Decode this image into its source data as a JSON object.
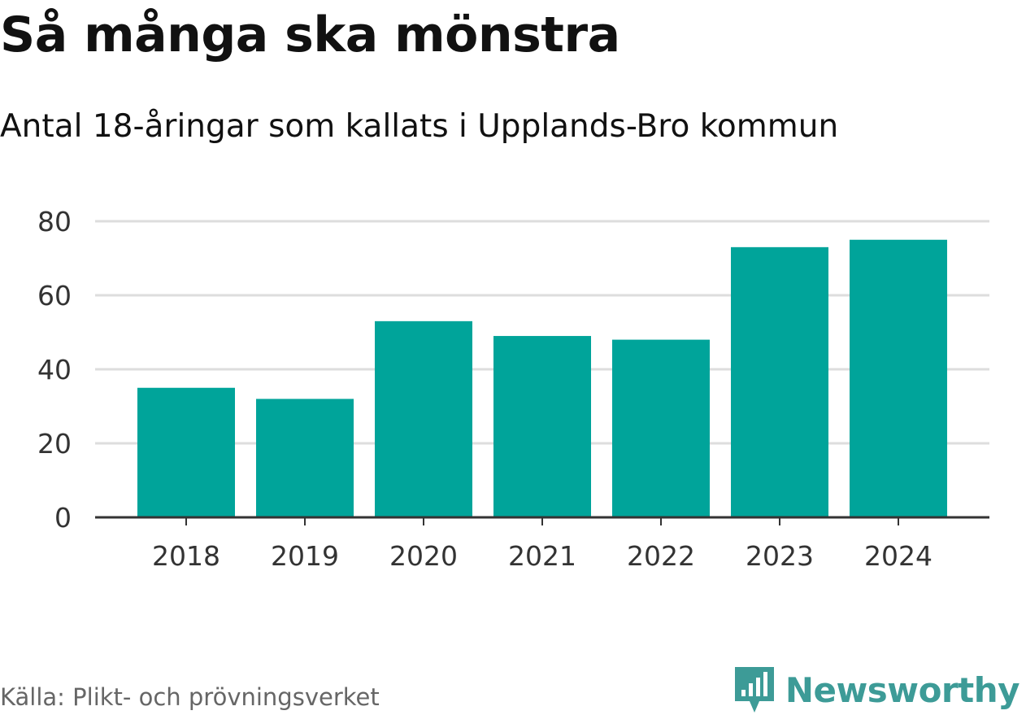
{
  "header": {
    "title": "Så många ska mönstra",
    "subtitle": "Antal 18-åringar som kallats i Upplands-Bro kommun"
  },
  "footer": {
    "source": "Källa: Plikt- och prövningsverket",
    "brand_name": "Newsworthy",
    "brand_icon": "newsworthy-logo-icon"
  },
  "colors": {
    "bar": "#00a49a",
    "grid": "#dddddd",
    "axis": "#333333",
    "brand": "#3d9b97"
  },
  "chart_data": {
    "type": "bar",
    "title": "Så många ska mönstra",
    "subtitle": "Antal 18-åringar som kallats i Upplands-Bro kommun",
    "categories": [
      "2018",
      "2019",
      "2020",
      "2021",
      "2022",
      "2023",
      "2024"
    ],
    "values": [
      35,
      32,
      53,
      49,
      48,
      73,
      75
    ],
    "xlabel": "",
    "ylabel": "",
    "ylim": [
      0,
      80
    ],
    "yticks": [
      0,
      20,
      40,
      60,
      80
    ],
    "grid": true,
    "legend": "none"
  }
}
